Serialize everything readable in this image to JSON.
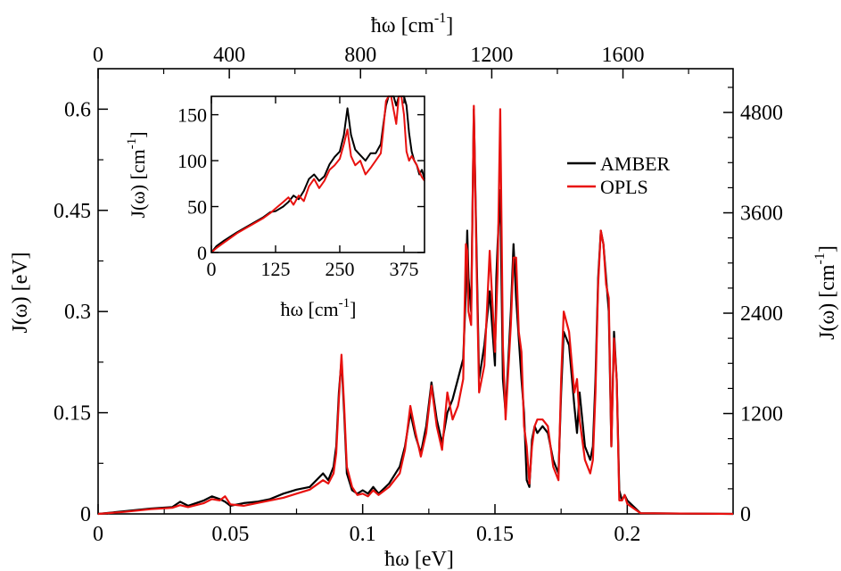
{
  "chart_data": [
    {
      "type": "line",
      "title": "",
      "xlabel": "ħω [eV]",
      "ylabel": "J(ω) [eV]",
      "x2label_base": "ħω [cm",
      "x2label_exp": "-1",
      "x2label_close": "]",
      "y2label_base": "J(ω) [cm",
      "y2label_exp": "-1",
      "y2label_close": "]",
      "xlim": [
        0,
        0.24
      ],
      "ylim": [
        0,
        0.66
      ],
      "x2lim": [
        0,
        1935.7
      ],
      "y2lim": [
        0,
        5323.2
      ],
      "x_ticks": [
        0,
        0.05,
        0.1,
        0.15,
        0.2
      ],
      "x_tick_labels": [
        "0",
        "0.05",
        "0.1",
        "0.15",
        "0.2"
      ],
      "y_ticks": [
        0,
        0.15,
        0.3,
        0.45,
        0.6
      ],
      "y_tick_labels": [
        "0",
        "0.15",
        "0.3",
        "0.45",
        "0.6"
      ],
      "x2_ticks": [
        0,
        400,
        800,
        1200,
        1600
      ],
      "x2_tick_labels": [
        "0",
        "400",
        "800",
        "1200",
        "1600"
      ],
      "y2_ticks": [
        0,
        1200,
        2400,
        3600,
        4800
      ],
      "y2_tick_labels": [
        "0",
        "1200",
        "2400",
        "3600",
        "4800"
      ],
      "grid": false,
      "legend_position": "top-right",
      "series": [
        {
          "name": "AMBER",
          "color": "#000000",
          "x": [
            0,
            0.01,
            0.02,
            0.028,
            0.031,
            0.034,
            0.04,
            0.043,
            0.046,
            0.048,
            0.05,
            0.055,
            0.06,
            0.065,
            0.07,
            0.075,
            0.08,
            0.085,
            0.087,
            0.089,
            0.09,
            0.091,
            0.092,
            0.093,
            0.094,
            0.096,
            0.098,
            0.1,
            0.102,
            0.104,
            0.106,
            0.11,
            0.114,
            0.116,
            0.118,
            0.12,
            0.122,
            0.124,
            0.126,
            0.128,
            0.13,
            0.132,
            0.134,
            0.136,
            0.138,
            0.139,
            0.1395,
            0.14,
            0.141,
            0.142,
            0.143,
            0.144,
            0.146,
            0.148,
            0.15,
            0.1505,
            0.151,
            0.152,
            0.153,
            0.154,
            0.156,
            0.157,
            0.158,
            0.159,
            0.16,
            0.161,
            0.162,
            0.163,
            0.164,
            0.165,
            0.166,
            0.168,
            0.17,
            0.172,
            0.174,
            0.175,
            0.176,
            0.178,
            0.18,
            0.181,
            0.182,
            0.184,
            0.186,
            0.187,
            0.188,
            0.189,
            0.19,
            0.191,
            0.192,
            0.193,
            0.194,
            0.195,
            0.196,
            0.197,
            0.198,
            0.199,
            0.2,
            0.205,
            0.24
          ],
          "values": [
            0,
            0.004,
            0.008,
            0.01,
            0.018,
            0.012,
            0.02,
            0.026,
            0.022,
            0.018,
            0.012,
            0.016,
            0.018,
            0.022,
            0.03,
            0.036,
            0.04,
            0.06,
            0.05,
            0.07,
            0.1,
            0.18,
            0.228,
            0.15,
            0.06,
            0.035,
            0.03,
            0.035,
            0.03,
            0.04,
            0.03,
            0.045,
            0.07,
            0.1,
            0.15,
            0.115,
            0.09,
            0.13,
            0.195,
            0.14,
            0.105,
            0.15,
            0.17,
            0.2,
            0.23,
            0.33,
            0.42,
            0.35,
            0.3,
            0.6,
            0.4,
            0.2,
            0.25,
            0.33,
            0.22,
            0.35,
            0.4,
            0.48,
            0.2,
            0.15,
            0.3,
            0.4,
            0.32,
            0.26,
            0.2,
            0.15,
            0.05,
            0.04,
            0.11,
            0.13,
            0.12,
            0.13,
            0.12,
            0.08,
            0.06,
            0.18,
            0.27,
            0.25,
            0.16,
            0.12,
            0.18,
            0.1,
            0.08,
            0.1,
            0.2,
            0.35,
            0.42,
            0.4,
            0.35,
            0.3,
            0.1,
            0.27,
            0.2,
            0.035,
            0.02,
            0.028,
            0.02,
            0.001,
            0
          ]
        },
        {
          "name": "OPLS",
          "color": "#e8110f",
          "x": [
            0,
            0.01,
            0.02,
            0.028,
            0.031,
            0.034,
            0.04,
            0.043,
            0.046,
            0.048,
            0.05,
            0.055,
            0.06,
            0.065,
            0.07,
            0.075,
            0.08,
            0.085,
            0.087,
            0.089,
            0.09,
            0.091,
            0.092,
            0.093,
            0.094,
            0.096,
            0.098,
            0.1,
            0.102,
            0.104,
            0.106,
            0.11,
            0.114,
            0.116,
            0.118,
            0.12,
            0.122,
            0.124,
            0.126,
            0.128,
            0.13,
            0.132,
            0.134,
            0.136,
            0.138,
            0.139,
            0.1395,
            0.14,
            0.141,
            0.142,
            0.143,
            0.144,
            0.146,
            0.148,
            0.15,
            0.1505,
            0.151,
            0.152,
            0.153,
            0.154,
            0.156,
            0.157,
            0.158,
            0.159,
            0.16,
            0.161,
            0.162,
            0.163,
            0.164,
            0.165,
            0.166,
            0.168,
            0.17,
            0.172,
            0.174,
            0.175,
            0.176,
            0.178,
            0.18,
            0.181,
            0.182,
            0.184,
            0.186,
            0.187,
            0.188,
            0.189,
            0.19,
            0.191,
            0.192,
            0.193,
            0.194,
            0.195,
            0.196,
            0.197,
            0.198,
            0.199,
            0.2,
            0.205,
            0.24
          ],
          "values": [
            0,
            0.003,
            0.007,
            0.009,
            0.013,
            0.01,
            0.016,
            0.022,
            0.02,
            0.026,
            0.014,
            0.012,
            0.016,
            0.02,
            0.024,
            0.03,
            0.036,
            0.05,
            0.045,
            0.06,
            0.09,
            0.17,
            0.236,
            0.16,
            0.07,
            0.04,
            0.028,
            0.03,
            0.026,
            0.035,
            0.028,
            0.04,
            0.06,
            0.095,
            0.16,
            0.12,
            0.085,
            0.12,
            0.19,
            0.13,
            0.095,
            0.18,
            0.14,
            0.16,
            0.2,
            0.4,
            0.39,
            0.3,
            0.28,
            0.605,
            0.38,
            0.18,
            0.22,
            0.39,
            0.24,
            0.3,
            0.36,
            0.6,
            0.25,
            0.14,
            0.28,
            0.38,
            0.38,
            0.27,
            0.24,
            0.13,
            0.1,
            0.045,
            0.1,
            0.13,
            0.14,
            0.14,
            0.13,
            0.07,
            0.05,
            0.2,
            0.3,
            0.27,
            0.18,
            0.2,
            0.14,
            0.08,
            0.06,
            0.08,
            0.18,
            0.34,
            0.42,
            0.4,
            0.34,
            0.32,
            0.1,
            0.26,
            0.2,
            0.02,
            0.02,
            0.028,
            0.015,
            0.001,
            0
          ]
        }
      ]
    },
    {
      "type": "line",
      "title": "",
      "xlabel_base": "ħω [cm",
      "xlabel_exp": "-1",
      "xlabel_close": "]",
      "ylabel_base": "J(ω) [cm",
      "ylabel_exp": "-1",
      "ylabel_close": "]",
      "xlim": [
        0,
        415
      ],
      "ylim": [
        0,
        170
      ],
      "x_ticks": [
        0,
        125,
        250,
        375
      ],
      "x_tick_labels": [
        "0",
        "125",
        "250",
        "375"
      ],
      "y_ticks": [
        0,
        50,
        100,
        150
      ],
      "y_tick_labels": [
        "0",
        "50",
        "100",
        "150"
      ],
      "grid": false,
      "series": [
        {
          "name": "AMBER",
          "color": "#000000",
          "x": [
            0,
            10,
            25,
            50,
            75,
            100,
            115,
            125,
            140,
            150,
            160,
            170,
            180,
            190,
            200,
            210,
            220,
            230,
            240,
            250,
            258,
            265,
            272,
            280,
            290,
            300,
            310,
            320,
            330,
            335,
            340,
            345,
            350,
            355,
            360,
            365,
            370,
            375,
            380,
            385,
            390,
            395,
            400,
            405,
            410,
            415
          ],
          "values": [
            0,
            7,
            13,
            22,
            30,
            38,
            44,
            45,
            50,
            55,
            62,
            58,
            67,
            80,
            85,
            78,
            83,
            96,
            104,
            110,
            128,
            157,
            128,
            112,
            106,
            100,
            108,
            108,
            118,
            140,
            160,
            170,
            175,
            170,
            160,
            175,
            170,
            175,
            160,
            130,
            110,
            100,
            95,
            85,
            90,
            80
          ]
        },
        {
          "name": "OPLS",
          "color": "#e8110f",
          "x": [
            0,
            10,
            25,
            50,
            75,
            100,
            115,
            125,
            140,
            150,
            160,
            170,
            180,
            190,
            200,
            210,
            220,
            230,
            240,
            250,
            258,
            265,
            272,
            280,
            290,
            300,
            310,
            320,
            330,
            335,
            340,
            345,
            350,
            355,
            360,
            365,
            370,
            375,
            380,
            385,
            390,
            395,
            400,
            405,
            410,
            415
          ],
          "values": [
            0,
            5,
            11,
            21,
            29,
            37,
            43,
            48,
            55,
            60,
            52,
            62,
            56,
            72,
            80,
            70,
            78,
            90,
            95,
            102,
            118,
            134,
            105,
            95,
            100,
            85,
            92,
            100,
            108,
            135,
            165,
            178,
            172,
            155,
            140,
            185,
            178,
            150,
            110,
            100,
            105,
            100,
            95,
            88,
            82,
            78
          ]
        }
      ]
    }
  ]
}
